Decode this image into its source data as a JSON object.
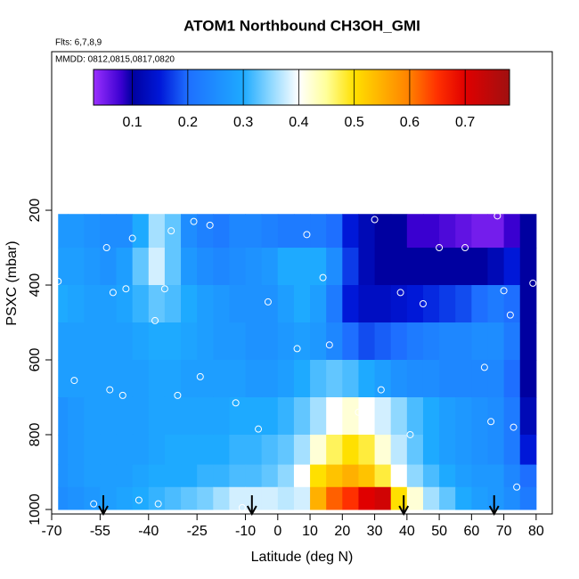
{
  "chart_data": {
    "type": "heatmap",
    "title": "ATOM1 Northbound CH3OH_GMI",
    "flights": "Flts: 6,7,8,9",
    "dates": "MMDD: 0812,0815,0817,0820",
    "xlabel": "Latitude (deg N)",
    "ylabel": "PSXC (mbar)",
    "xlim": [
      -70,
      85
    ],
    "ylim": [
      1012,
      -224
    ],
    "xticks": [
      -70,
      -55,
      -40,
      -25,
      -10,
      0,
      10,
      20,
      30,
      40,
      50,
      60,
      70,
      80
    ],
    "yticks": [
      200,
      400,
      600,
      800,
      1000
    ],
    "xbins": [
      -68,
      -65,
      -60,
      -55,
      -50,
      -45,
      -40,
      -35,
      -30,
      -25,
      -20,
      -15,
      -10,
      -5,
      0,
      5,
      10,
      15,
      20,
      25,
      30,
      35,
      40,
      45,
      50,
      55,
      60,
      65,
      70,
      75,
      80
    ],
    "ybins": [
      210,
      300,
      400,
      500,
      600,
      700,
      800,
      880,
      940,
      1000
    ],
    "z": [
      [
        0.27,
        0.27,
        0.26,
        0.25,
        0.25,
        0.3,
        0.36,
        0.33,
        0.25,
        0.23,
        0.22,
        0.24,
        0.24,
        0.23,
        0.22,
        0.22,
        0.22,
        0.2,
        0.15,
        0.12,
        0.1,
        0.1,
        0.08,
        0.08,
        0.07,
        0.06,
        0.05,
        0.05,
        0.08,
        0.1
      ],
      [
        0.28,
        0.28,
        0.27,
        0.26,
        0.28,
        0.33,
        0.38,
        0.33,
        0.27,
        0.25,
        0.24,
        0.25,
        0.26,
        0.27,
        0.3,
        0.3,
        0.3,
        0.25,
        0.17,
        0.12,
        0.1,
        0.1,
        0.1,
        0.1,
        0.1,
        0.1,
        0.1,
        0.12,
        0.15,
        0.1
      ],
      [
        0.3,
        0.29,
        0.28,
        0.28,
        0.29,
        0.31,
        0.33,
        0.32,
        0.3,
        0.28,
        0.27,
        0.26,
        0.26,
        0.26,
        0.28,
        0.3,
        0.28,
        0.22,
        0.15,
        0.13,
        0.13,
        0.14,
        0.15,
        0.16,
        0.17,
        0.18,
        0.2,
        0.22,
        0.2,
        0.1
      ],
      [
        0.28,
        0.28,
        0.28,
        0.28,
        0.28,
        0.29,
        0.3,
        0.3,
        0.29,
        0.28,
        0.27,
        0.27,
        0.26,
        0.26,
        0.27,
        0.28,
        0.27,
        0.24,
        0.2,
        0.18,
        0.19,
        0.2,
        0.22,
        0.23,
        0.24,
        0.24,
        0.25,
        0.25,
        0.22,
        0.1
      ],
      [
        0.28,
        0.28,
        0.28,
        0.28,
        0.28,
        0.28,
        0.29,
        0.29,
        0.28,
        0.28,
        0.28,
        0.28,
        0.27,
        0.27,
        0.28,
        0.3,
        0.32,
        0.33,
        0.32,
        0.3,
        0.28,
        0.26,
        0.25,
        0.25,
        0.24,
        0.24,
        0.24,
        0.24,
        0.2,
        0.1
      ],
      [
        0.26,
        0.27,
        0.28,
        0.28,
        0.28,
        0.28,
        0.29,
        0.29,
        0.29,
        0.29,
        0.29,
        0.3,
        0.3,
        0.3,
        0.31,
        0.33,
        0.36,
        0.4,
        0.42,
        0.4,
        0.38,
        0.35,
        0.32,
        0.3,
        0.28,
        0.27,
        0.26,
        0.25,
        0.22,
        0.12
      ],
      [
        0.26,
        0.27,
        0.28,
        0.28,
        0.28,
        0.28,
        0.29,
        0.3,
        0.3,
        0.3,
        0.3,
        0.31,
        0.31,
        0.32,
        0.33,
        0.36,
        0.42,
        0.47,
        0.5,
        0.48,
        0.42,
        0.37,
        0.33,
        0.3,
        0.28,
        0.27,
        0.26,
        0.25,
        0.22,
        0.15
      ],
      [
        0.26,
        0.27,
        0.28,
        0.28,
        0.28,
        0.29,
        0.3,
        0.3,
        0.3,
        0.31,
        0.31,
        0.32,
        0.32,
        0.33,
        0.35,
        0.4,
        0.5,
        0.53,
        0.55,
        0.53,
        0.48,
        0.4,
        0.35,
        0.32,
        0.3,
        0.28,
        0.27,
        0.27,
        0.24,
        0.2
      ],
      [
        0.25,
        0.26,
        0.27,
        0.28,
        0.29,
        0.3,
        0.31,
        0.32,
        0.33,
        0.34,
        0.36,
        0.38,
        0.38,
        0.38,
        0.37,
        0.38,
        0.55,
        0.62,
        0.65,
        0.7,
        0.72,
        0.5,
        0.42,
        0.36,
        0.33,
        0.3,
        0.28,
        0.27,
        0.25,
        0.22
      ]
    ],
    "clim": [
      0.03,
      0.78
    ],
    "cticks": [
      0.1,
      0.2,
      0.3,
      0.4,
      0.5,
      0.6,
      0.7
    ],
    "colorscale": [
      [
        0.03,
        "#9b30ff"
      ],
      [
        0.08,
        "#3a00d0"
      ],
      [
        0.1,
        "#0000a0"
      ],
      [
        0.15,
        "#0018d8"
      ],
      [
        0.2,
        "#1e6fff"
      ],
      [
        0.3,
        "#1eaaff"
      ],
      [
        0.35,
        "#8fd8ff"
      ],
      [
        0.4,
        "#ffffff"
      ],
      [
        0.45,
        "#ffff99"
      ],
      [
        0.5,
        "#ffe000"
      ],
      [
        0.55,
        "#ffb000"
      ],
      [
        0.6,
        "#ff8000"
      ],
      [
        0.65,
        "#ff3000"
      ],
      [
        0.7,
        "#e00000"
      ],
      [
        0.78,
        "#a01010"
      ]
    ],
    "samples": {
      "x": [
        -68,
        -63,
        -57,
        -53,
        -52,
        -51,
        -48,
        -47,
        -45,
        -43,
        -38,
        -37,
        -35,
        -33,
        -31,
        -26,
        -24,
        -21,
        -13,
        -11,
        -6,
        -3,
        6,
        9,
        14,
        16,
        25,
        30,
        32,
        38,
        41,
        45,
        50,
        58,
        64,
        66,
        68,
        70,
        72,
        73,
        74,
        79
      ],
      "y": [
        390,
        655,
        985,
        300,
        680,
        420,
        695,
        410,
        275,
        975,
        495,
        985,
        410,
        255,
        695,
        230,
        645,
        240,
        715,
        995,
        785,
        445,
        570,
        265,
        380,
        560,
        740,
        225,
        680,
        420,
        800,
        450,
        300,
        300,
        620,
        765,
        215,
        415,
        480,
        780,
        940,
        395
      ]
    },
    "flight_markers": [
      -54,
      -8,
      39,
      67
    ]
  }
}
